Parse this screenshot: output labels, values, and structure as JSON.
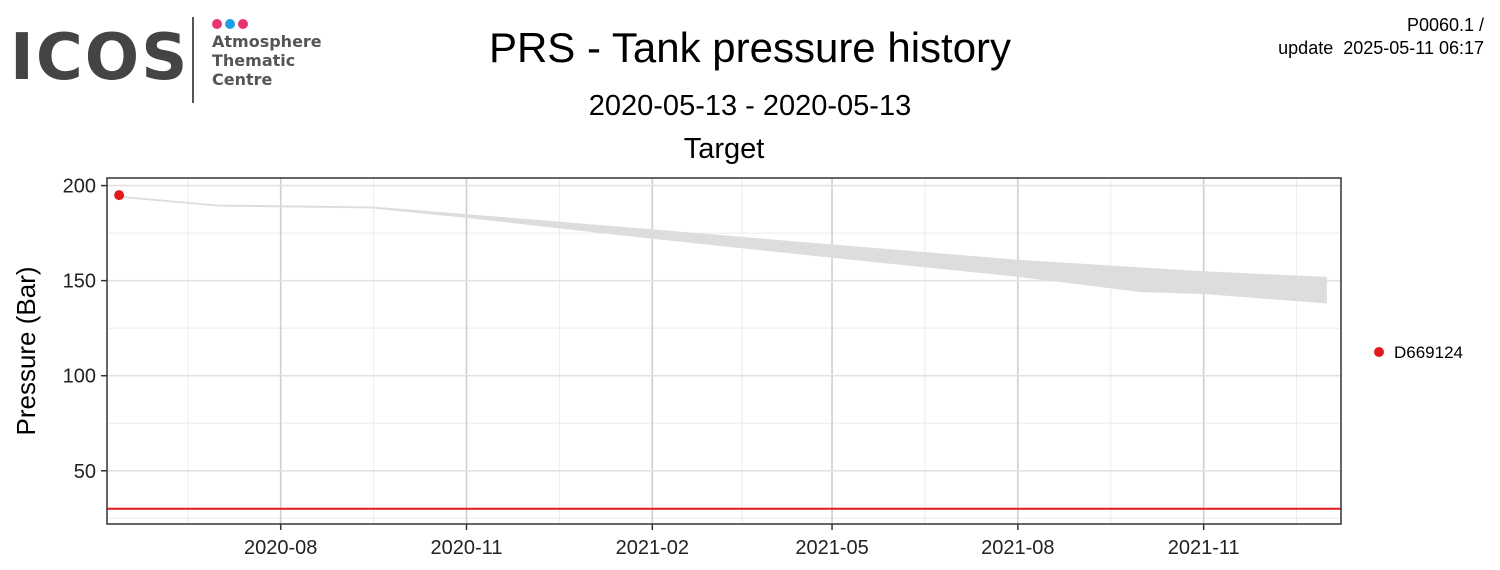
{
  "logo": {
    "wordmark": "ICOS",
    "lines": [
      "Atmosphere",
      "Thematic",
      "Centre"
    ],
    "dot_colors": [
      "#e6336f",
      "#1f9ee3",
      "#e6336f"
    ]
  },
  "header": {
    "title": "PRS - Tank pressure history",
    "subtitle": "2020-05-13 - 2020-05-13",
    "panel_label": "Target",
    "meta_line1": "P0060.1 /",
    "meta_line2": "update  2025-05-11 06:17"
  },
  "chart_data": {
    "type": "area",
    "ylabel": "Pressure (Bar)",
    "xlabel": "",
    "ylim": [
      22,
      204
    ],
    "xlim": [
      "2020-05-07",
      "2022-01-08"
    ],
    "x_ticks": [
      "2020-08-01",
      "2020-11-01",
      "2021-02-01",
      "2021-05-01",
      "2021-08-01",
      "2021-11-01"
    ],
    "x_tick_labels": [
      "2020-08",
      "2020-11",
      "2021-02",
      "2021-05",
      "2021-08",
      "2021-11"
    ],
    "y_ticks": [
      50,
      100,
      150,
      200
    ],
    "grid": true,
    "legend_position": "right",
    "band": {
      "color": "#dddddd",
      "x": [
        "2020-05-15",
        "2020-07-01",
        "2020-09-15",
        "2020-11-01",
        "2021-02-01",
        "2021-05-01",
        "2021-08-01",
        "2021-10-01",
        "2021-11-01",
        "2022-01-01"
      ],
      "upper": [
        194.5,
        190,
        189,
        185,
        177,
        169,
        161,
        157,
        155,
        152
      ],
      "lower": [
        193.5,
        189,
        188,
        183,
        172,
        162,
        152,
        144,
        143,
        138
      ]
    },
    "series": [
      {
        "name": "D669124",
        "color": "#e31a1c",
        "x": [
          "2020-05-13"
        ],
        "y": [
          195
        ]
      }
    ],
    "threshold": {
      "y": 30,
      "color": "#e31a1c"
    }
  }
}
